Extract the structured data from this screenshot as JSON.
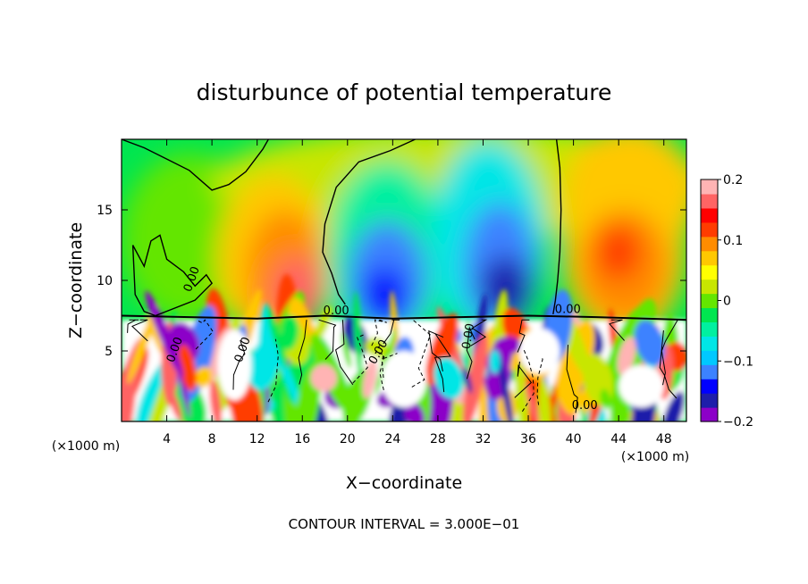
{
  "chart_data": {
    "type": "heatmap",
    "title": "disturbunce of potential temperature",
    "xlabel": "X−coordinate",
    "ylabel": "Z−coordinate",
    "x_unit_left": "(×1000 m)",
    "x_unit_right": "(×1000 m)",
    "footer": "CONTOUR INTERVAL = 3.000E−01",
    "xlim": [
      0,
      50
    ],
    "ylim": [
      0,
      20
    ],
    "x_ticks": [
      "4",
      "8",
      "12",
      "16",
      "20",
      "24",
      "28",
      "32",
      "36",
      "40",
      "44",
      "48"
    ],
    "y_ticks": [
      "5",
      "10",
      "15"
    ],
    "colorbar": {
      "range": [
        -0.2,
        0.2
      ],
      "tick_labels": [
        "0.2",
        "0.1",
        "0",
        "−0.1",
        "−0.2"
      ],
      "colors": [
        "#8c00c8",
        "#1e1eaa",
        "#0000ff",
        "#3c82ff",
        "#00c8ff",
        "#00e6e6",
        "#00f0a0",
        "#00e650",
        "#64e600",
        "#c8e600",
        "#ffff00",
        "#ffc800",
        "#ff8c00",
        "#ff3c00",
        "#ff0000",
        "#ff6464",
        "#ffb4b4"
      ]
    },
    "contour_labels": [
      "0.00",
      "0.00",
      "0.00",
      "0.00",
      "0.00",
      "0.00",
      "0.00",
      "0.00"
    ],
    "features": [
      {
        "kind": "warm",
        "x": 15.5,
        "z": 9.5,
        "value": 0.16
      },
      {
        "kind": "warm",
        "x": 44.5,
        "z": 12,
        "value": 0.12
      },
      {
        "kind": "cool",
        "x": 23.5,
        "z": 9.5,
        "value": -0.15
      },
      {
        "kind": "cool",
        "x": 33.5,
        "z": 10.5,
        "value": -0.17
      }
    ]
  }
}
